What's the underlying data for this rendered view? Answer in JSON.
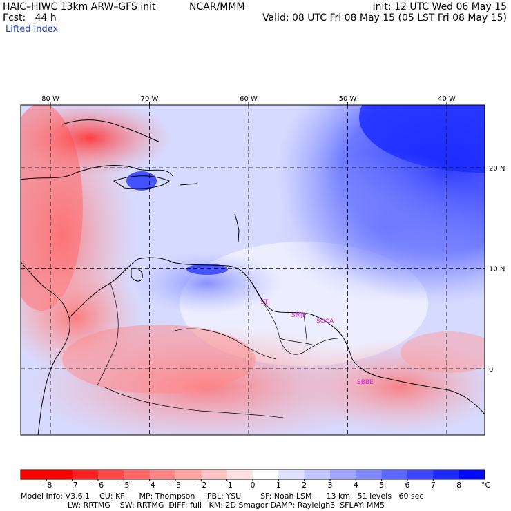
{
  "header": {
    "model_title": "HAIC–HIWC 13km ARW–GFS init",
    "center": "NCAR/MMM",
    "init": "Init: 12 UTC Wed 06 May 15",
    "forecast": "Fcst:   44 h",
    "valid": "Valid: 08 UTC Fri 08 May 15 (05 LST Fri 08 May 15)",
    "field_name": "Lifted index"
  },
  "map": {
    "lon_labels": [
      "80 W",
      "70 W",
      "60 W",
      "50 W",
      "40 W"
    ],
    "lat_labels": [
      "20 N",
      "10 N",
      "0"
    ],
    "lons": [
      -80,
      -70,
      -60,
      -50,
      -40
    ],
    "lats": [
      20,
      10,
      0
    ],
    "station_labels": [
      "STJ",
      "SMJP",
      "SOCA",
      "SBBE"
    ],
    "station_color": "#e020e0"
  },
  "colorbar": {
    "unit": "°C",
    "tick_labels": [
      "−8",
      "−7",
      "−6",
      "−5",
      "−4",
      "−3",
      "−2",
      "−1",
      "0",
      "1",
      "2",
      "3",
      "4",
      "5",
      "6",
      "7",
      "8"
    ],
    "colors": [
      "#ff0000",
      "#ff2020",
      "#ff4848",
      "#ff6666",
      "#ff8585",
      "#ffa3a3",
      "#ffc2c2",
      "#ffe0e0",
      "#ffffff",
      "#e0e0ff",
      "#c0c4ff",
      "#9ea4ff",
      "#8088ff",
      "#5c68ff",
      "#3c48ff",
      "#1c2cff",
      "#0008ff"
    ]
  },
  "footer": {
    "line1": "Model Info: V3.6.1    CU: KF      MP: Thompson     PBL: YSU        SF: Noah LSM      13 km   51 levels   60 sec",
    "line2": "LW: RRTMG    SW: RRTMG  DIFF: full   KM: 2D Smagor DAMP: Rayleigh3  SFLAY: MM5"
  }
}
